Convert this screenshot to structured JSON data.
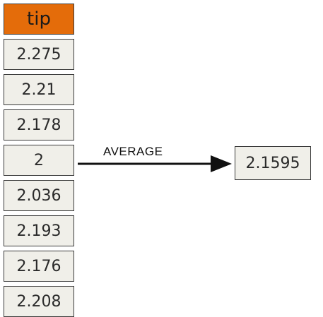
{
  "table": {
    "header": "tip",
    "header_color": "#e46c0a",
    "cell_color": "#f0efe9",
    "rows": [
      "2.275",
      "2.21",
      "2.178",
      "2",
      "2.036",
      "2.193",
      "2.176",
      "2.208"
    ]
  },
  "arrow": {
    "label": "AVERAGE"
  },
  "result": {
    "value": "2.1595"
  }
}
